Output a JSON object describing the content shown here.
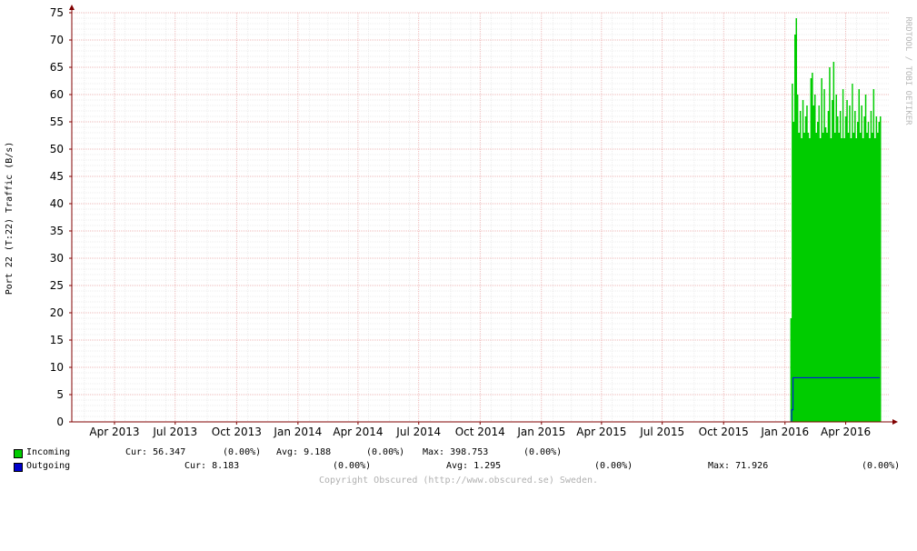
{
  "chart_data": {
    "type": "area",
    "ylabel": "Port 22 (T:22) Traffic (B/s)",
    "watermark": "RRDTOOL / TOBI OETIKER",
    "y_ticks": [
      0,
      5,
      10,
      15,
      20,
      25,
      30,
      35,
      40,
      45,
      50,
      55,
      60,
      65,
      70,
      75
    ],
    "ylim": [
      0,
      75
    ],
    "x_range": [
      "2013-02-10",
      "2016-06-20"
    ],
    "x_ticks": [
      {
        "label": "Apr 2013",
        "date": "2013-04-15"
      },
      {
        "label": "Jul 2013",
        "date": "2013-07-15"
      },
      {
        "label": "Oct 2013",
        "date": "2013-10-15"
      },
      {
        "label": "Jan 2014",
        "date": "2014-01-15"
      },
      {
        "label": "Apr 2014",
        "date": "2014-04-15"
      },
      {
        "label": "Jul 2014",
        "date": "2014-07-15"
      },
      {
        "label": "Oct 2014",
        "date": "2014-10-15"
      },
      {
        "label": "Jan 2015",
        "date": "2015-01-15"
      },
      {
        "label": "Apr 2015",
        "date": "2015-04-15"
      },
      {
        "label": "Jul 2015",
        "date": "2015-07-15"
      },
      {
        "label": "Oct 2015",
        "date": "2015-10-15"
      },
      {
        "label": "Jan 2016",
        "date": "2016-01-15"
      },
      {
        "label": "Apr 2016",
        "date": "2016-04-15"
      }
    ],
    "grid": true,
    "series": [
      {
        "name": "Incoming",
        "color": "#00cc00",
        "style": "area",
        "x": [
          "2016-01-23",
          "2016-01-25",
          "2016-01-27",
          "2016-01-29",
          "2016-01-31",
          "2016-02-02",
          "2016-02-04",
          "2016-02-06",
          "2016-02-08",
          "2016-02-10",
          "2016-02-12",
          "2016-02-14",
          "2016-02-16",
          "2016-02-18",
          "2016-02-20",
          "2016-02-22",
          "2016-02-24",
          "2016-02-26",
          "2016-02-28",
          "2016-03-01",
          "2016-03-03",
          "2016-03-05",
          "2016-03-07",
          "2016-03-09",
          "2016-03-11",
          "2016-03-13",
          "2016-03-15",
          "2016-03-17",
          "2016-03-19",
          "2016-03-21",
          "2016-03-23",
          "2016-03-25",
          "2016-03-27",
          "2016-03-29",
          "2016-03-31",
          "2016-04-02",
          "2016-04-04",
          "2016-04-06",
          "2016-04-08",
          "2016-04-10",
          "2016-04-12",
          "2016-04-14",
          "2016-04-16",
          "2016-04-18",
          "2016-04-20",
          "2016-04-22",
          "2016-04-24",
          "2016-04-26",
          "2016-04-28",
          "2016-04-30",
          "2016-05-02",
          "2016-05-04",
          "2016-05-06",
          "2016-05-08",
          "2016-05-10",
          "2016-05-12",
          "2016-05-14",
          "2016-05-16",
          "2016-05-18",
          "2016-05-20",
          "2016-05-22",
          "2016-05-24",
          "2016-05-26",
          "2016-05-28",
          "2016-05-30",
          "2016-06-01",
          "2016-06-03",
          "2016-06-05"
        ],
        "values": [
          19,
          62,
          55,
          71,
          74,
          60,
          53,
          57,
          52,
          59,
          53,
          56,
          58,
          53,
          52,
          63,
          64,
          58,
          60,
          53,
          55,
          58,
          52,
          63,
          53,
          61,
          54,
          53,
          57,
          65,
          52,
          59,
          66,
          53,
          60,
          56,
          53,
          57,
          52,
          61,
          52,
          56,
          59,
          53,
          58,
          52,
          62,
          53,
          57,
          52,
          55,
          61,
          53,
          58,
          52,
          56,
          60,
          53,
          55,
          52,
          57,
          53,
          61,
          52,
          56,
          53,
          55,
          56
        ]
      },
      {
        "name": "Outgoing",
        "color": "#0000ff",
        "style": "line",
        "x": [
          "2016-01-23",
          "2016-01-25",
          "2016-01-27",
          "2016-06-05"
        ],
        "values": [
          0,
          2.2,
          8.1,
          8.1
        ]
      }
    ]
  },
  "legend": [
    {
      "label": "Incoming",
      "color": "#00cc00",
      "cur": "Cur: 56.347",
      "cur_pct": "(0.00%)",
      "avg": "Avg: 9.188",
      "avg_pct": "(0.00%)",
      "max": "Max: 398.753",
      "max_pct": "(0.00%)"
    },
    {
      "label": "Outgoing",
      "color": "#0000cc",
      "cur": "Cur: 8.183",
      "cur_pct": "(0.00%)",
      "avg": "Avg: 1.295",
      "avg_pct": "(0.00%)",
      "max": "Max: 71.926",
      "max_pct": "(0.00%)"
    }
  ],
  "footer": "Copyright Obscured (http://www.obscured.se) Sweden."
}
